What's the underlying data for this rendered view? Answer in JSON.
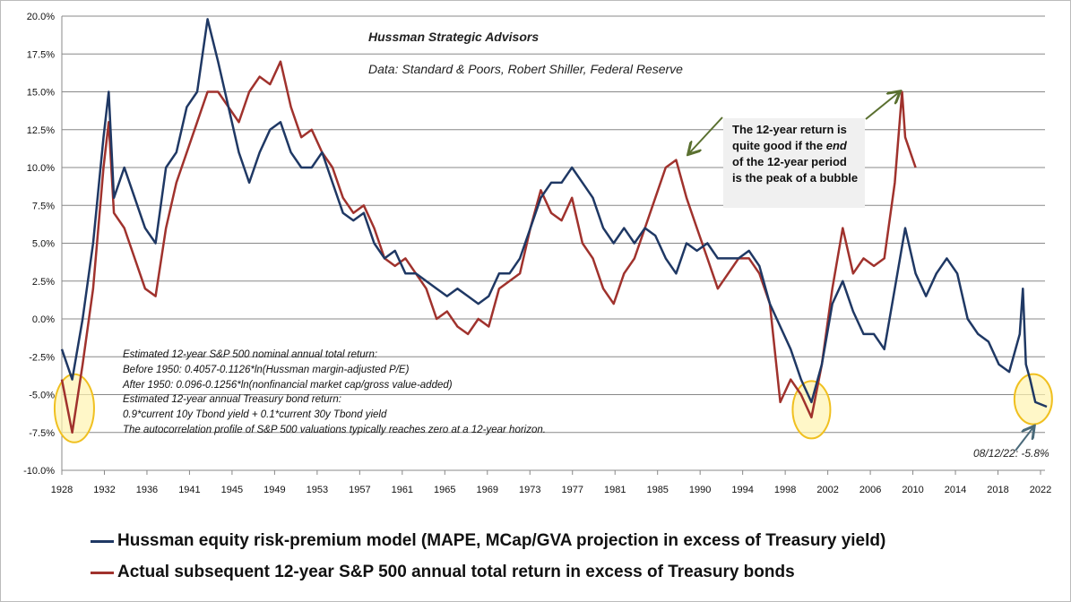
{
  "header": {
    "title": "Hussman Strategic  Advisors",
    "source": "Data: Standard & Poors, Robert Shiller, Federal Reserve"
  },
  "callout": {
    "lines": [
      "The 12-year return is",
      "quite good if the ",
      "end",
      " of the 12-year period",
      "is the peak of a bubble"
    ]
  },
  "notes": [
    "Estimated 12-year S&P 500  nominal annual total return:",
    "Before 1950:  0.4057-0.1126*ln(Hussman  margin-adjusted P/E)",
    "After 1950:  0.096-0.1256*ln(nonfinancial market cap/gross value-added)",
    "Estimated 12-year annual Treasury bond return:",
    "0.9*current 10y Tbond yield + 0.1*current 30y Tbond yield",
    "The autocorrelation profile of S&P 500  valuations typically reaches zero at a 12-year horizon."
  ],
  "latest_label": "08/12/22: -5.8%",
  "legend": [
    {
      "label": "Hussman equity risk-premium model (MAPE, MCap/GVA projection in excess of Treasury yield)",
      "color": "#1f3864"
    },
    {
      "label": "Actual subsequent 12-year S&P 500 annual total return in excess of Treasury bonds",
      "color": "#a0322d"
    }
  ],
  "chart_data": {
    "type": "line",
    "xlim": [
      1928,
      2022
    ],
    "ylim": [
      -10,
      20
    ],
    "x_tick_labels": [
      "1928",
      "1932",
      "1936",
      "1941",
      "1945",
      "1949",
      "1953",
      "1957",
      "1961",
      "1965",
      "1969",
      "1973",
      "1977",
      "1981",
      "1985",
      "1990",
      "1994",
      "1998",
      "2002",
      "2006",
      "2010",
      "2014",
      "2018",
      "2022"
    ],
    "y_ticks": [
      -10,
      -7.5,
      -5,
      -2.5,
      0,
      2.5,
      5,
      7.5,
      10,
      12.5,
      15,
      17.5,
      20
    ],
    "y_tick_labels": [
      "-10.0%",
      "-7.5%",
      "-5.0%",
      "-2.5%",
      "0.0%",
      "2.5%",
      "5.0%",
      "7.5%",
      "10.0%",
      "12.5%",
      "15.0%",
      "17.5%",
      "20.0%"
    ],
    "grid": "horizontal",
    "legend_position": "bottom",
    "series": [
      {
        "name": "Hussman equity risk-premium model (MAPE, MCap/GVA projection in excess of Treasury yield)",
        "color": "#1f3864",
        "points": [
          [
            1928,
            -2
          ],
          [
            1929,
            -4
          ],
          [
            1930,
            0
          ],
          [
            1931,
            5
          ],
          [
            1932,
            12
          ],
          [
            1932.5,
            15
          ],
          [
            1933,
            8
          ],
          [
            1934,
            10
          ],
          [
            1935,
            8
          ],
          [
            1936,
            6
          ],
          [
            1937,
            5
          ],
          [
            1938,
            10
          ],
          [
            1939,
            11
          ],
          [
            1940,
            14
          ],
          [
            1941,
            15
          ],
          [
            1942,
            19.8
          ],
          [
            1943,
            17
          ],
          [
            1944,
            14
          ],
          [
            1945,
            11
          ],
          [
            1946,
            9
          ],
          [
            1947,
            11
          ],
          [
            1948,
            12.5
          ],
          [
            1949,
            13
          ],
          [
            1950,
            11
          ],
          [
            1951,
            10
          ],
          [
            1952,
            10
          ],
          [
            1953,
            11
          ],
          [
            1954,
            9
          ],
          [
            1955,
            7
          ],
          [
            1956,
            6.5
          ],
          [
            1957,
            7
          ],
          [
            1958,
            5
          ],
          [
            1959,
            4
          ],
          [
            1960,
            4.5
          ],
          [
            1961,
            3
          ],
          [
            1962,
            3
          ],
          [
            1963,
            2.5
          ],
          [
            1964,
            2
          ],
          [
            1965,
            1.5
          ],
          [
            1966,
            2
          ],
          [
            1967,
            1.5
          ],
          [
            1968,
            1
          ],
          [
            1969,
            1.5
          ],
          [
            1970,
            3
          ],
          [
            1971,
            3
          ],
          [
            1972,
            4
          ],
          [
            1973,
            6
          ],
          [
            1974,
            8
          ],
          [
            1975,
            9
          ],
          [
            1976,
            9
          ],
          [
            1977,
            10
          ],
          [
            1978,
            9
          ],
          [
            1979,
            8
          ],
          [
            1980,
            6
          ],
          [
            1981,
            5
          ],
          [
            1982,
            6
          ],
          [
            1983,
            5
          ],
          [
            1984,
            6
          ],
          [
            1985,
            5.5
          ],
          [
            1986,
            4
          ],
          [
            1987,
            3
          ],
          [
            1988,
            5
          ],
          [
            1989,
            4.5
          ],
          [
            1990,
            5
          ],
          [
            1991,
            4
          ],
          [
            1992,
            4
          ],
          [
            1993,
            4
          ],
          [
            1994,
            4.5
          ],
          [
            1995,
            3.5
          ],
          [
            1996,
            1
          ],
          [
            1997,
            -0.5
          ],
          [
            1998,
            -2
          ],
          [
            1999,
            -4
          ],
          [
            2000,
            -5.5
          ],
          [
            2001,
            -3
          ],
          [
            2002,
            1
          ],
          [
            2003,
            2.5
          ],
          [
            2004,
            0.5
          ],
          [
            2005,
            -1
          ],
          [
            2006,
            -1
          ],
          [
            2007,
            -2
          ],
          [
            2008,
            2
          ],
          [
            2009,
            6
          ],
          [
            2010,
            3
          ],
          [
            2011,
            1.5
          ],
          [
            2012,
            3
          ],
          [
            2013,
            4
          ],
          [
            2014,
            3
          ],
          [
            2015,
            0
          ],
          [
            2016,
            -1
          ],
          [
            2017,
            -1.5
          ],
          [
            2018,
            -3
          ],
          [
            2019,
            -3.5
          ],
          [
            2020,
            -1
          ],
          [
            2020.3,
            2
          ],
          [
            2020.6,
            -3
          ],
          [
            2021,
            -4
          ],
          [
            2021.5,
            -5.5
          ],
          [
            2022.6,
            -5.8
          ]
        ]
      },
      {
        "name": "Actual subsequent 12-year S&P 500 annual total return in excess of Treasury bonds",
        "color": "#a0322d",
        "points": [
          [
            1928,
            -4
          ],
          [
            1929,
            -7.5
          ],
          [
            1930,
            -3
          ],
          [
            1931,
            2
          ],
          [
            1932,
            10
          ],
          [
            1932.5,
            13
          ],
          [
            1933,
            7
          ],
          [
            1934,
            6
          ],
          [
            1935,
            4
          ],
          [
            1936,
            2
          ],
          [
            1937,
            1.5
          ],
          [
            1938,
            6
          ],
          [
            1939,
            9
          ],
          [
            1940,
            11
          ],
          [
            1941,
            13
          ],
          [
            1942,
            15
          ],
          [
            1943,
            15
          ],
          [
            1944,
            14
          ],
          [
            1945,
            13
          ],
          [
            1946,
            15
          ],
          [
            1947,
            16
          ],
          [
            1948,
            15.5
          ],
          [
            1949,
            17
          ],
          [
            1950,
            14
          ],
          [
            1951,
            12
          ],
          [
            1952,
            12.5
          ],
          [
            1953,
            11
          ],
          [
            1954,
            10
          ],
          [
            1955,
            8
          ],
          [
            1956,
            7
          ],
          [
            1957,
            7.5
          ],
          [
            1958,
            6
          ],
          [
            1959,
            4
          ],
          [
            1960,
            3.5
          ],
          [
            1961,
            4
          ],
          [
            1962,
            3
          ],
          [
            1963,
            2
          ],
          [
            1964,
            0
          ],
          [
            1965,
            0.5
          ],
          [
            1966,
            -0.5
          ],
          [
            1967,
            -1
          ],
          [
            1968,
            0
          ],
          [
            1969,
            -0.5
          ],
          [
            1970,
            2
          ],
          [
            1971,
            2.5
          ],
          [
            1972,
            3
          ],
          [
            1973,
            6
          ],
          [
            1974,
            8.5
          ],
          [
            1975,
            7
          ],
          [
            1976,
            6.5
          ],
          [
            1977,
            8
          ],
          [
            1978,
            5
          ],
          [
            1979,
            4
          ],
          [
            1980,
            2
          ],
          [
            1981,
            1
          ],
          [
            1982,
            3
          ],
          [
            1983,
            4
          ],
          [
            1984,
            6
          ],
          [
            1985,
            8
          ],
          [
            1986,
            10
          ],
          [
            1987,
            10.5
          ],
          [
            1988,
            8
          ],
          [
            1989,
            6
          ],
          [
            1990,
            4
          ],
          [
            1991,
            2
          ],
          [
            1992,
            3
          ],
          [
            1993,
            4
          ],
          [
            1994,
            4
          ],
          [
            1995,
            3
          ],
          [
            1996,
            1
          ],
          [
            1997,
            -5.5
          ],
          [
            1998,
            -4
          ],
          [
            1999,
            -5
          ],
          [
            2000,
            -6.5
          ],
          [
            2001,
            -3
          ],
          [
            2002,
            2
          ],
          [
            2003,
            6
          ],
          [
            2004,
            3
          ],
          [
            2005,
            4
          ],
          [
            2006,
            3.5
          ],
          [
            2007,
            4
          ],
          [
            2008,
            9
          ],
          [
            2008.7,
            15
          ],
          [
            2009,
            12
          ],
          [
            2010,
            10
          ]
        ]
      }
    ]
  }
}
